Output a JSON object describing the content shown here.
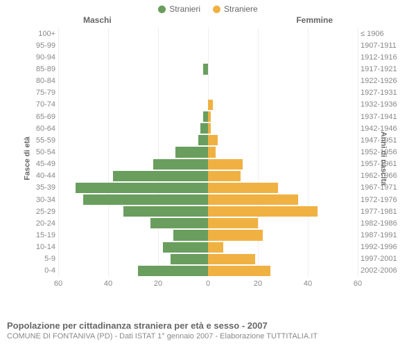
{
  "legend": {
    "male": {
      "label": "Stranieri",
      "color": "#6a9e5e"
    },
    "female": {
      "label": "Straniere",
      "color": "#f0b143"
    }
  },
  "panel_titles": {
    "left": "Maschi",
    "right": "Femmine"
  },
  "axis_titles": {
    "left": "Fasce di età",
    "right": "Anni di nascita"
  },
  "grid": {
    "color": "#eeeeee",
    "xmax": 60,
    "ticks_left": [
      60,
      40,
      20,
      0
    ],
    "ticks_right": [
      0,
      20,
      40,
      60
    ]
  },
  "bar": {
    "male_color": "#6a9e5e",
    "female_color": "#f0b143"
  },
  "rows": [
    {
      "age": "100+",
      "birth": "≤ 1906",
      "m": 0,
      "f": 0
    },
    {
      "age": "95-99",
      "birth": "1907-1911",
      "m": 0,
      "f": 0
    },
    {
      "age": "90-94",
      "birth": "1912-1916",
      "m": 0,
      "f": 0
    },
    {
      "age": "85-89",
      "birth": "1917-1921",
      "m": 2,
      "f": 0
    },
    {
      "age": "80-84",
      "birth": "1922-1926",
      "m": 0,
      "f": 0
    },
    {
      "age": "75-79",
      "birth": "1927-1931",
      "m": 0,
      "f": 0
    },
    {
      "age": "70-74",
      "birth": "1932-1936",
      "m": 0,
      "f": 2
    },
    {
      "age": "65-69",
      "birth": "1937-1941",
      "m": 2,
      "f": 1
    },
    {
      "age": "60-64",
      "birth": "1942-1946",
      "m": 3,
      "f": 1
    },
    {
      "age": "55-59",
      "birth": "1947-1951",
      "m": 4,
      "f": 4
    },
    {
      "age": "50-54",
      "birth": "1952-1956",
      "m": 13,
      "f": 3
    },
    {
      "age": "45-49",
      "birth": "1957-1961",
      "m": 22,
      "f": 14
    },
    {
      "age": "40-44",
      "birth": "1962-1966",
      "m": 38,
      "f": 13
    },
    {
      "age": "35-39",
      "birth": "1967-1971",
      "m": 53,
      "f": 28
    },
    {
      "age": "30-34",
      "birth": "1972-1976",
      "m": 50,
      "f": 36
    },
    {
      "age": "25-29",
      "birth": "1977-1981",
      "m": 34,
      "f": 44
    },
    {
      "age": "20-24",
      "birth": "1982-1986",
      "m": 23,
      "f": 20
    },
    {
      "age": "15-19",
      "birth": "1987-1991",
      "m": 14,
      "f": 22
    },
    {
      "age": "10-14",
      "birth": "1992-1996",
      "m": 18,
      "f": 6
    },
    {
      "age": "5-9",
      "birth": "1997-2001",
      "m": 15,
      "f": 19
    },
    {
      "age": "0-4",
      "birth": "2002-2006",
      "m": 28,
      "f": 25
    }
  ],
  "caption": {
    "line1": "Popolazione per cittadinanza straniera per età e sesso - 2007",
    "line2": "COMUNE DI FONTANIVA (PD) - Dati ISTAT 1° gennaio 2007 - Elaborazione TUTTITALIA.IT"
  }
}
